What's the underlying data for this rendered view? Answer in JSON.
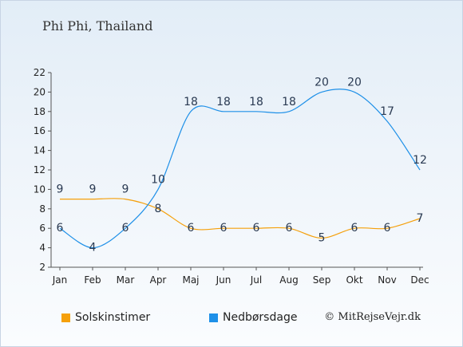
{
  "title": "Phi Phi, Thailand",
  "copyright": "© MitRejseVejr.dk",
  "colors": {
    "sun": "#f5a00b",
    "rain": "#1e90e8",
    "axis": "#555555"
  },
  "chart_data": {
    "type": "line",
    "categories": [
      "Jan",
      "Feb",
      "Mar",
      "Apr",
      "Maj",
      "Jun",
      "Jul",
      "Aug",
      "Sep",
      "Okt",
      "Nov",
      "Dec"
    ],
    "series": [
      {
        "name": "Solskinstimer",
        "color": "#f5a00b",
        "values": [
          9,
          9,
          9,
          8,
          6,
          6,
          6,
          6,
          5,
          6,
          6,
          7
        ]
      },
      {
        "name": "Nedbørsdage",
        "color": "#1e90e8",
        "values": [
          6,
          4,
          6,
          10,
          18,
          18,
          18,
          18,
          20,
          20,
          17,
          12
        ]
      }
    ],
    "ylim": [
      2,
      22
    ],
    "yticks": [
      2,
      4,
      6,
      8,
      10,
      12,
      14,
      16,
      18,
      20,
      22
    ],
    "grid": false,
    "legend_position": "bottom-left"
  }
}
